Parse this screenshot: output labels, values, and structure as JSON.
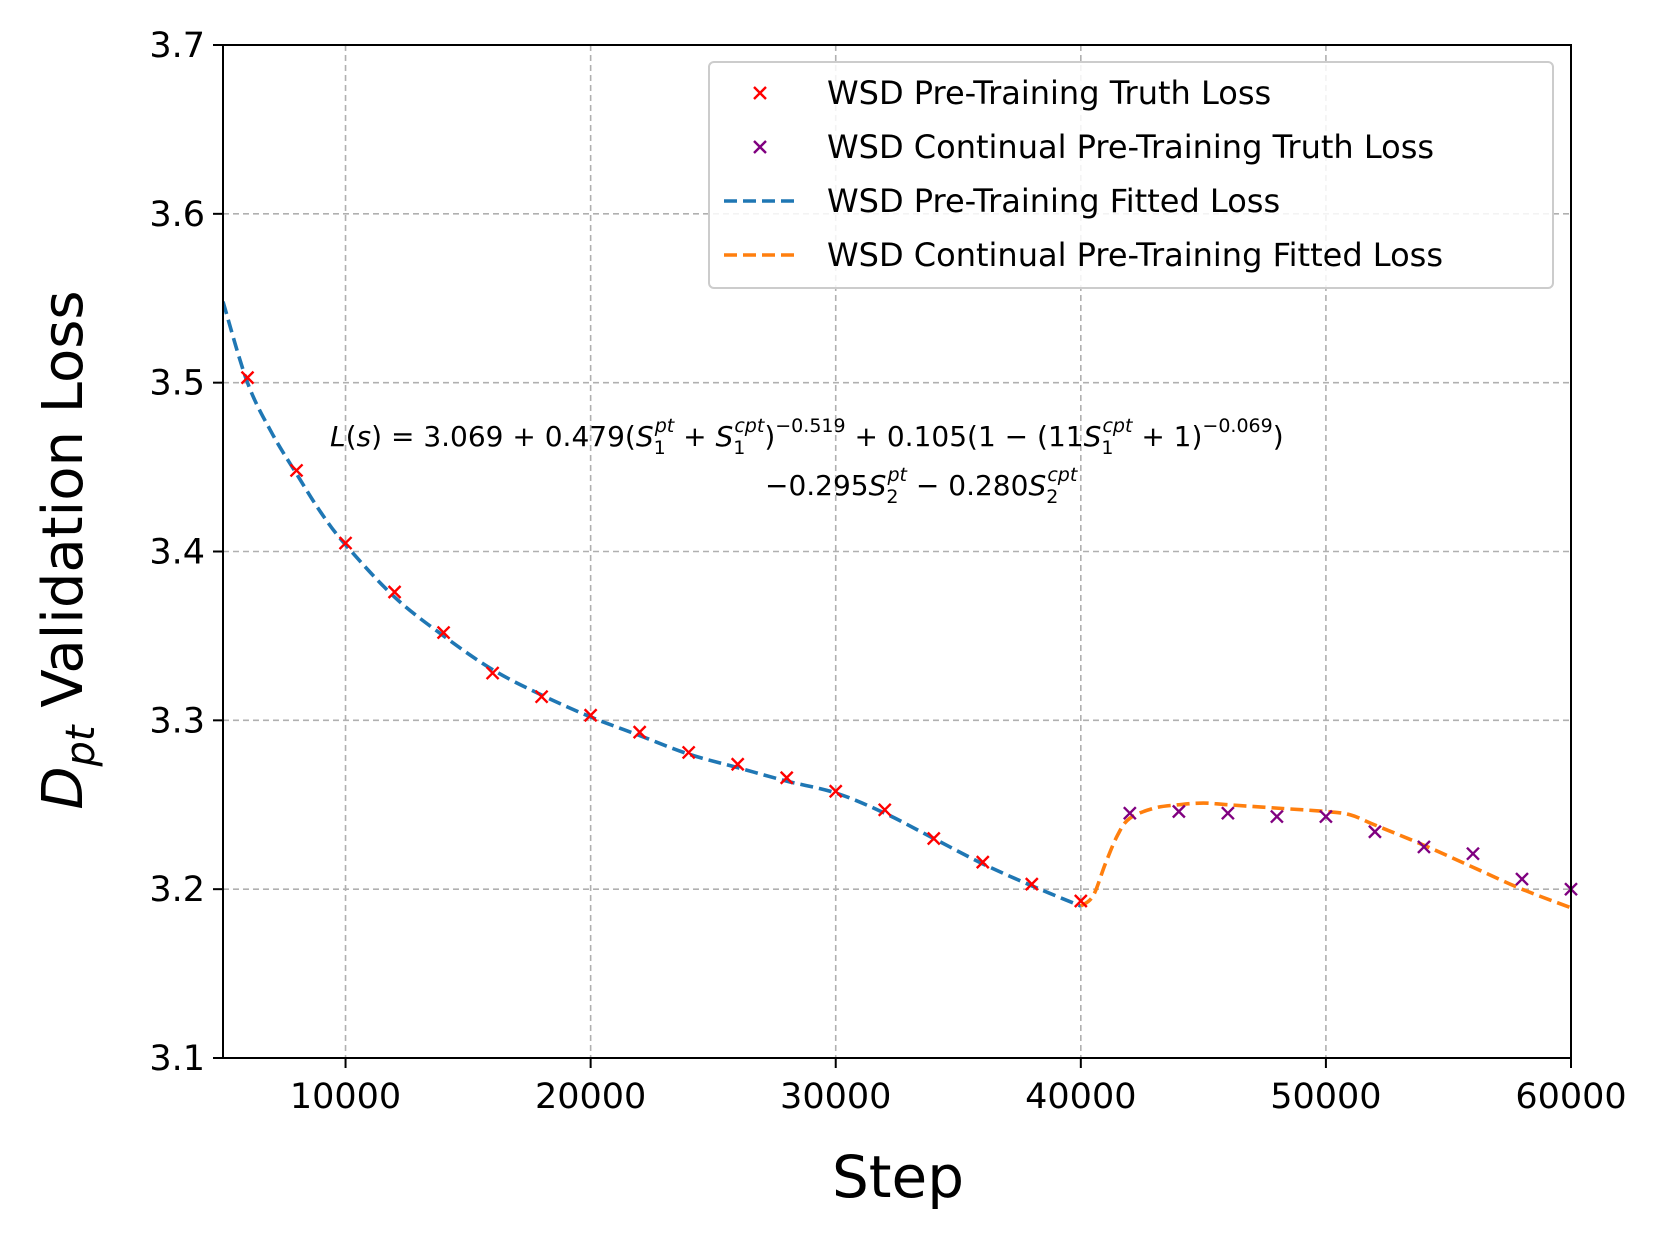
{
  "chart_data": {
    "type": "line",
    "xlabel": "Step",
    "ylabel": "D_pt Validation Loss",
    "xlim": [
      5000,
      60000
    ],
    "ylim": [
      3.1,
      3.7
    ],
    "x_ticks": [
      10000,
      20000,
      30000,
      40000,
      50000,
      60000
    ],
    "y_ticks": [
      3.1,
      3.2,
      3.3,
      3.4,
      3.5,
      3.6,
      3.7
    ],
    "x_tick_labels": [
      "10000",
      "20000",
      "30000",
      "40000",
      "50000",
      "60000"
    ],
    "y_tick_labels": [
      "3.1",
      "3.2",
      "3.3",
      "3.4",
      "3.5",
      "3.6",
      "3.7"
    ],
    "grid": true,
    "legend_position": "top-right",
    "annotation": {
      "line1": "L(s) = 3.069 + 0.479(S1pt + S1cpt)^-0.519 + 0.105(1 - (11S1cpt + 1)^-0.069)",
      "line2": "-0.295S2pt - 0.280S2cpt"
    },
    "series": [
      {
        "name": "WSD Pre-Training Truth Loss",
        "style": "marker-x",
        "color": "#ff0000",
        "x": [
          6000,
          8000,
          10000,
          12000,
          14000,
          16000,
          18000,
          20000,
          22000,
          24000,
          26000,
          28000,
          30000,
          32000,
          34000,
          36000,
          38000,
          40000
        ],
        "y": [
          3.503,
          3.448,
          3.405,
          3.376,
          3.352,
          3.328,
          3.314,
          3.303,
          3.293,
          3.281,
          3.274,
          3.266,
          3.258,
          3.247,
          3.23,
          3.216,
          3.203,
          3.193
        ]
      },
      {
        "name": "WSD Continual Pre-Training Truth Loss",
        "style": "marker-x",
        "color": "#800080",
        "x": [
          42000,
          44000,
          46000,
          48000,
          50000,
          52000,
          54000,
          56000,
          58000,
          60000
        ],
        "y": [
          3.245,
          3.246,
          3.245,
          3.243,
          3.243,
          3.234,
          3.225,
          3.221,
          3.206,
          3.2
        ]
      },
      {
        "name": "WSD Pre-Training Fitted Loss",
        "style": "dashed-line",
        "color": "#1f77b4",
        "x": [
          5000,
          6000,
          7000,
          8000,
          9000,
          10000,
          12000,
          14000,
          16000,
          18000,
          20000,
          22000,
          24000,
          26000,
          28000,
          30000,
          32000,
          34000,
          36000,
          38000,
          40000
        ],
        "y": [
          3.548,
          3.5,
          3.47,
          3.446,
          3.423,
          3.404,
          3.373,
          3.35,
          3.33,
          3.315,
          3.302,
          3.291,
          3.28,
          3.272,
          3.264,
          3.257,
          3.245,
          3.23,
          3.215,
          3.202,
          3.19
        ]
      },
      {
        "name": "WSD Continual Pre-Training Fitted Loss",
        "style": "dashed-line",
        "color": "#ff7f0e",
        "x": [
          40000,
          40500,
          41000,
          41500,
          42000,
          43000,
          44000,
          45000,
          46000,
          48000,
          50000,
          51000,
          52000,
          54000,
          56000,
          58000,
          60000
        ],
        "y": [
          3.19,
          3.196,
          3.215,
          3.232,
          3.242,
          3.248,
          3.25,
          3.251,
          3.25,
          3.248,
          3.246,
          3.244,
          3.238,
          3.226,
          3.213,
          3.2,
          3.189
        ]
      }
    ]
  }
}
